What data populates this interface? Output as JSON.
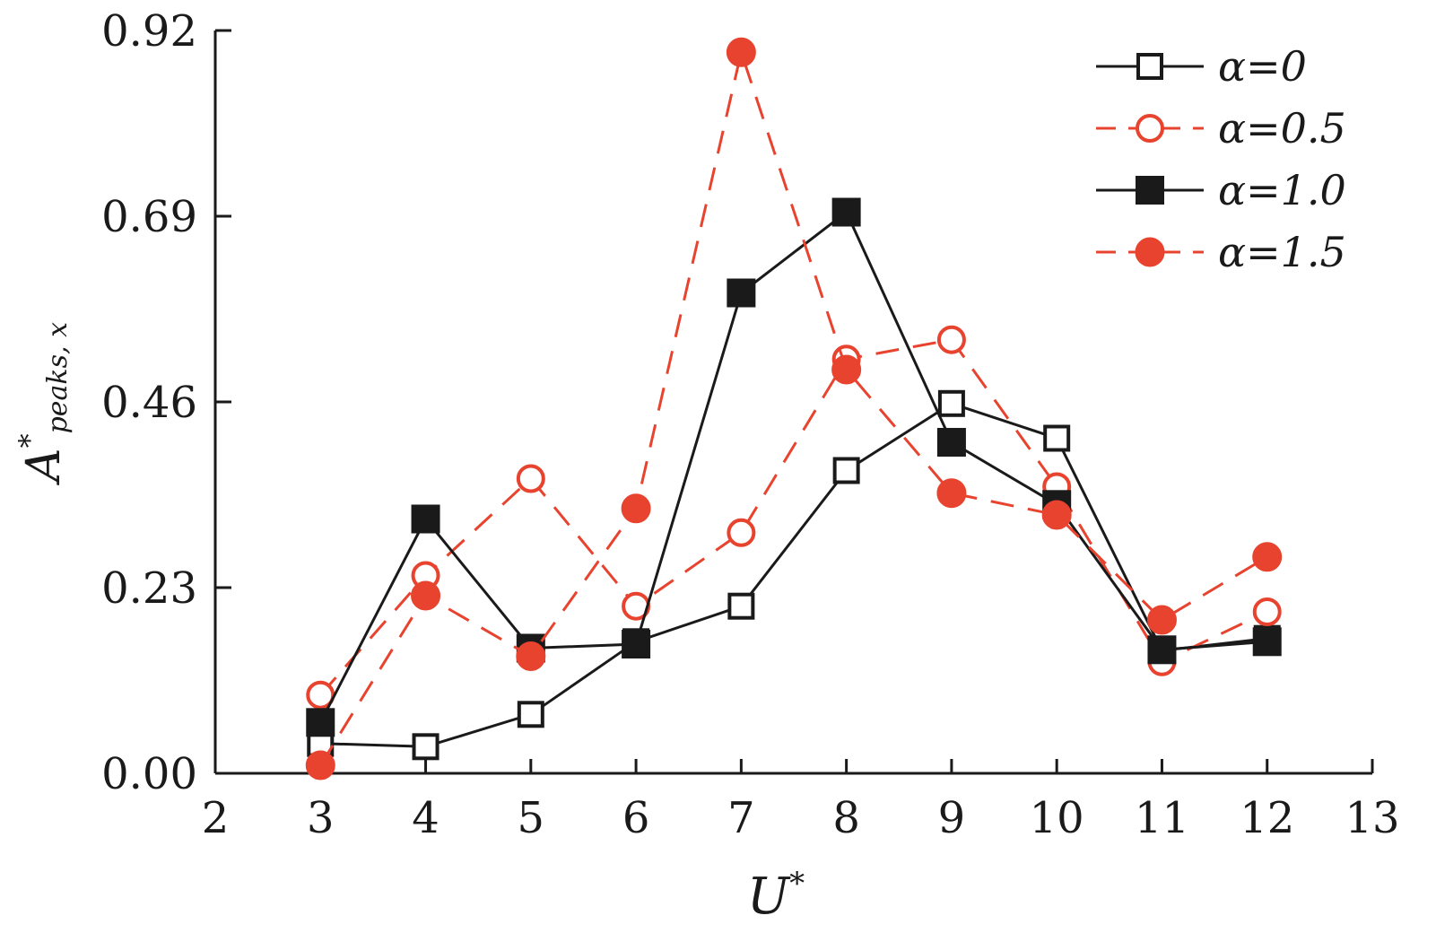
{
  "chart_data": {
    "type": "line",
    "xlabel": "U*",
    "ylabel": "A*peaks, x",
    "ylabel_parts": {
      "main": "A",
      "sup": "*",
      "sub": "peaks, x"
    },
    "xlabel_parts": {
      "main": "U",
      "sup": "*"
    },
    "xlim": [
      2,
      13
    ],
    "ylim": [
      0,
      0.92
    ],
    "x_ticks": [
      "2",
      "3",
      "4",
      "5",
      "6",
      "7",
      "8",
      "9",
      "10",
      "11",
      "12",
      "13"
    ],
    "y_ticks": [
      "0.00",
      "0.23",
      "0.46",
      "0.69",
      "0.92"
    ],
    "grid": false,
    "legend_position": "top-right",
    "x": [
      3,
      4,
      5,
      6,
      7,
      8,
      9,
      10,
      11,
      12
    ],
    "series": [
      {
        "name": "α=0",
        "values": [
          0.037,
          0.033,
          0.073,
          0.163,
          0.207,
          0.375,
          0.458,
          0.415,
          0.152,
          0.167
        ],
        "color": "#1a1a1a",
        "marker": "square-open",
        "line": "solid"
      },
      {
        "name": "α=0.5",
        "values": [
          0.097,
          0.245,
          0.365,
          0.207,
          0.298,
          0.513,
          0.537,
          0.355,
          0.138,
          0.2
        ],
        "color": "#e8432e",
        "marker": "circle-open",
        "line": "dashed"
      },
      {
        "name": "α=1.0",
        "values": [
          0.063,
          0.315,
          0.155,
          0.16,
          0.595,
          0.695,
          0.41,
          0.333,
          0.153,
          0.163
        ],
        "color": "#1a1a1a",
        "marker": "square-filled",
        "line": "solid"
      },
      {
        "name": "α=1.5",
        "values": [
          0.01,
          0.22,
          0.145,
          0.328,
          0.893,
          0.5,
          0.347,
          0.32,
          0.19,
          0.268
        ],
        "color": "#e8432e",
        "marker": "circle-filled",
        "line": "dashed"
      }
    ]
  }
}
